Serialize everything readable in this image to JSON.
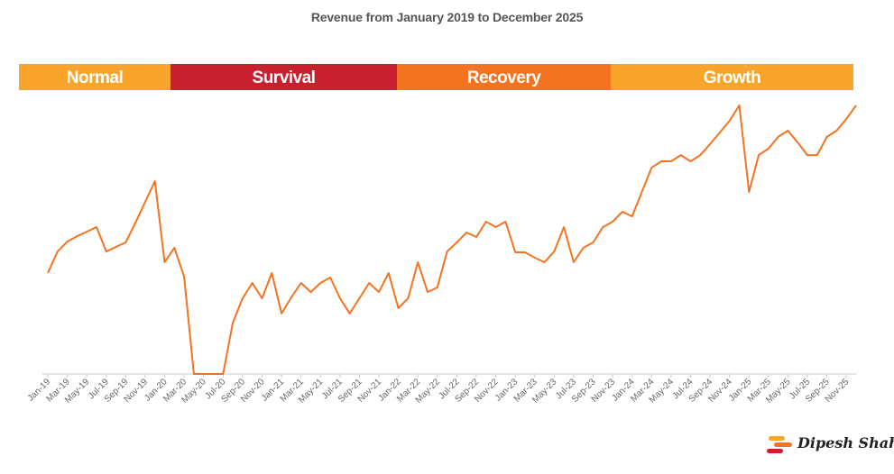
{
  "chart_data": {
    "type": "line",
    "title": "Revenue from January 2019 to December 2025",
    "xlabel": "",
    "ylabel": "",
    "y_axis_labels_shown": false,
    "ylim": [
      0,
      100
    ],
    "grid": false,
    "legend": "none",
    "line_color": "#F47321",
    "phases": [
      {
        "label": "Normal",
        "start": "Jan-19",
        "end": "Jan-20",
        "color": "#F9A52B"
      },
      {
        "label": "Survival",
        "start": "Jan-20",
        "end": "Jan-22",
        "color": "#C8202F"
      },
      {
        "label": "Recovery",
        "start": "Jan-22",
        "end": "Dec-23",
        "color": "#F47321"
      },
      {
        "label": "Growth",
        "start": "Dec-23",
        "end": "Dec-25",
        "color": "#F9A52B"
      }
    ],
    "tick_labels": [
      "Jan-19",
      "Mar-19",
      "May-19",
      "Jul-19",
      "Sep-19",
      "Nov-19",
      "Jan-20",
      "Mar-20",
      "May-20",
      "Jul-20",
      "Sep-20",
      "Nov-20",
      "Jan-21",
      "Mar-21",
      "May-21",
      "Jul-21",
      "Sep-21",
      "Nov-21",
      "Jan-22",
      "Mar-22",
      "May-22",
      "Jul-22",
      "Sep-22",
      "Nov-22",
      "Jan-23",
      "Mar-23",
      "May-23",
      "Jul-23",
      "Sep-23",
      "Nov-23",
      "Jan-24",
      "Mar-24",
      "May-24",
      "Jul-24",
      "Sep-24",
      "Nov-24",
      "Jan-25",
      "Mar-25",
      "May-25",
      "Jul-25",
      "Sep-25",
      "Nov-25"
    ],
    "series": [
      {
        "name": "Revenue",
        "values": [
          37.6,
          45.6,
          49.3,
          51.3,
          53.0,
          54.7,
          45.6,
          47.3,
          49.0,
          56.4,
          64.1,
          71.8,
          41.6,
          47.0,
          36.2,
          0,
          0,
          0,
          0,
          19.1,
          28.2,
          33.9,
          28.2,
          37.6,
          22.5,
          28.5,
          33.9,
          30.5,
          33.9,
          35.9,
          28.2,
          22.5,
          28.2,
          33.9,
          30.5,
          37.6,
          24.5,
          28.2,
          41.6,
          30.5,
          32.2,
          45.6,
          49.0,
          52.7,
          51.0,
          56.7,
          54.7,
          56.7,
          45.3,
          45.3,
          43.3,
          41.6,
          45.6,
          54.7,
          41.6,
          47.0,
          49.0,
          54.7,
          56.7,
          60.4,
          58.7,
          67.8,
          76.8,
          79.2,
          79.2,
          81.5,
          79.2,
          81.5,
          85.6,
          89.9,
          94.3,
          100,
          67.8,
          81.5,
          83.9,
          88.3,
          90.6,
          86.2,
          81.5,
          81.5,
          88.3,
          90.6,
          95.0,
          100
        ]
      }
    ]
  },
  "branding": {
    "logo_text": "Dipesh Shah",
    "logo_colors": [
      "#F9A52B",
      "#F47321",
      "#C8202F"
    ]
  }
}
